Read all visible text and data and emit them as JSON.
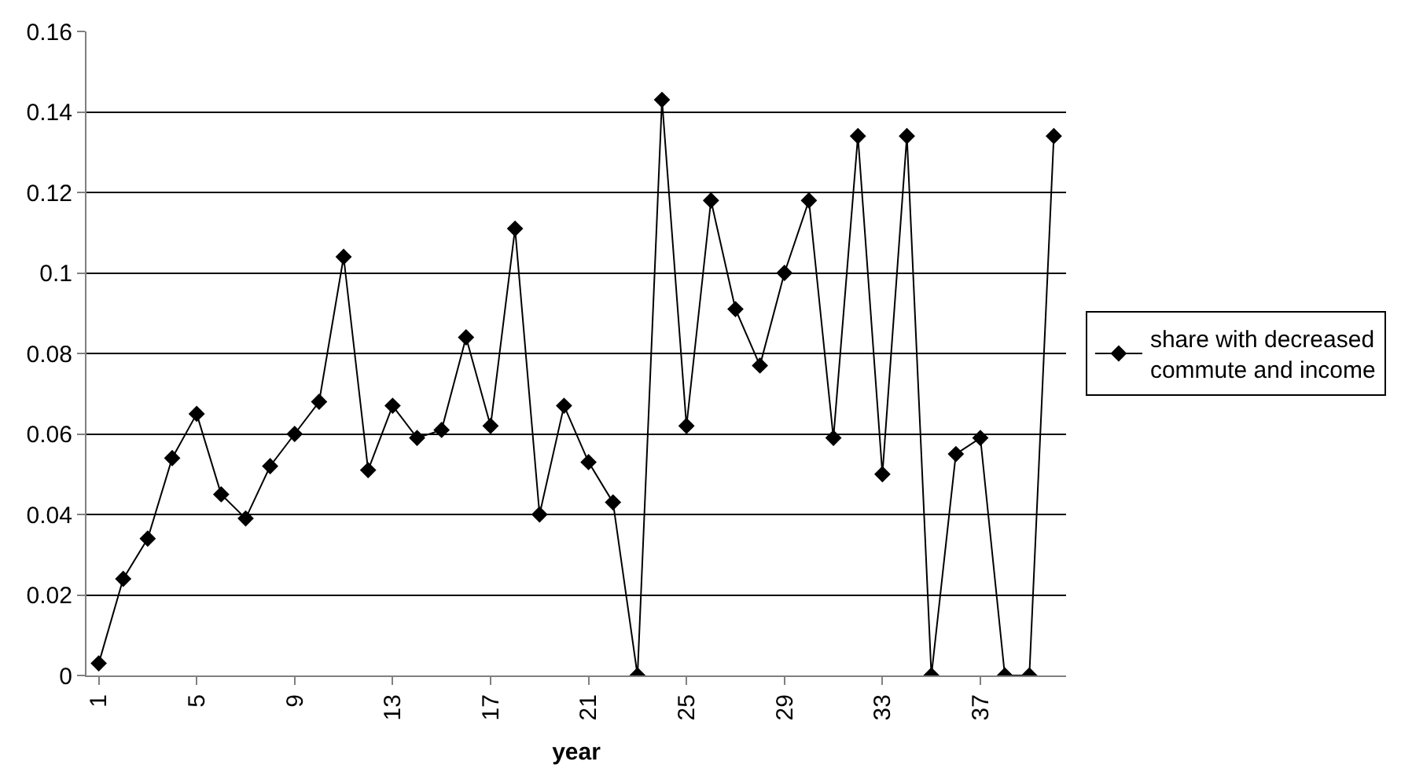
{
  "chart_data": {
    "type": "line",
    "xlabel": "year",
    "x": [
      1,
      2,
      3,
      4,
      5,
      6,
      7,
      8,
      9,
      10,
      11,
      12,
      13,
      14,
      15,
      16,
      17,
      18,
      19,
      20,
      21,
      22,
      23,
      24,
      25,
      26,
      27,
      28,
      29,
      30,
      31,
      32,
      33,
      34,
      35,
      36,
      37,
      38,
      39,
      40
    ],
    "series": [
      {
        "name": "share with decreased commute and income",
        "color": "#000000",
        "values": [
          0.003,
          0.024,
          0.034,
          0.054,
          0.065,
          0.045,
          0.039,
          0.052,
          0.06,
          0.068,
          0.104,
          0.051,
          0.067,
          0.059,
          0.061,
          0.084,
          0.062,
          0.111,
          0.04,
          0.067,
          0.053,
          0.043,
          0,
          0.143,
          0.062,
          0.118,
          0.091,
          0.077,
          0.1,
          0.118,
          0.059,
          0.134,
          0.05,
          0.134,
          0,
          0.055,
          0.059,
          0,
          0,
          0.134
        ]
      }
    ],
    "xlim": [
      0.5,
      40.5
    ],
    "xticks": [
      1,
      5,
      9,
      13,
      17,
      21,
      25,
      29,
      33,
      37
    ],
    "ylim": [
      0,
      0.16
    ],
    "yticks": [
      0,
      0.02,
      0.04,
      0.06,
      0.08,
      0.1,
      0.12,
      0.14,
      0.16
    ],
    "grid": "y",
    "legend": "right",
    "marker": "diamond",
    "line_style": "solid"
  }
}
